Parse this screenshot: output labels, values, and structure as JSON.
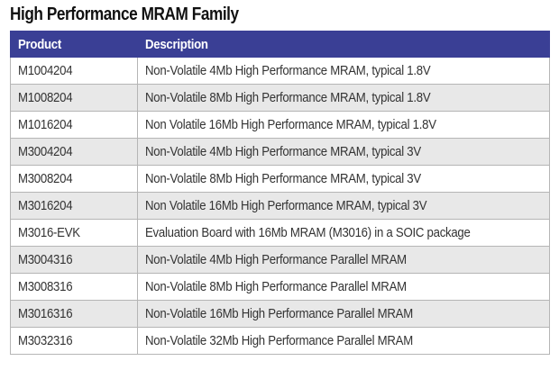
{
  "title": "High Performance MRAM Family",
  "table": {
    "headers": {
      "product": "Product",
      "description": "Description"
    },
    "rows": [
      {
        "product": "M1004204",
        "description": "Non-Volatile 4Mb High Performance MRAM, typical 1.8V"
      },
      {
        "product": "M1008204",
        "description": "Non-Volatile 8Mb High Performance MRAM, typical 1.8V"
      },
      {
        "product": "M1016204",
        "description": "Non Volatile 16Mb High Performance MRAM, typical 1.8V"
      },
      {
        "product": "M3004204",
        "description": "Non-Volatile 4Mb High Performance MRAM, typical 3V"
      },
      {
        "product": "M3008204",
        "description": "Non-Volatile 8Mb High Performance MRAM, typical 3V"
      },
      {
        "product": "M3016204",
        "description": "Non Volatile 16Mb High Performance MRAM, typical 3V"
      },
      {
        "product": "M3016-EVK",
        "description": "Evaluation Board with 16Mb MRAM (M3016) in a SOIC package"
      },
      {
        "product": "M3004316",
        "description": "Non-Volatile 4Mb High Performance Parallel MRAM"
      },
      {
        "product": "M3008316",
        "description": "Non-Volatile 8Mb High Performance Parallel MRAM"
      },
      {
        "product": "M3016316",
        "description": "Non-Volatile 16Mb High Performance Parallel MRAM"
      },
      {
        "product": "M3032316",
        "description": "Non-Volatile 32Mb High Performance Parallel MRAM"
      }
    ]
  },
  "colors": {
    "header_bg": "#3a3f95",
    "header_text": "#ffffff",
    "stripe_bg": "#e8e8e8",
    "border": "#b5b5b5"
  }
}
